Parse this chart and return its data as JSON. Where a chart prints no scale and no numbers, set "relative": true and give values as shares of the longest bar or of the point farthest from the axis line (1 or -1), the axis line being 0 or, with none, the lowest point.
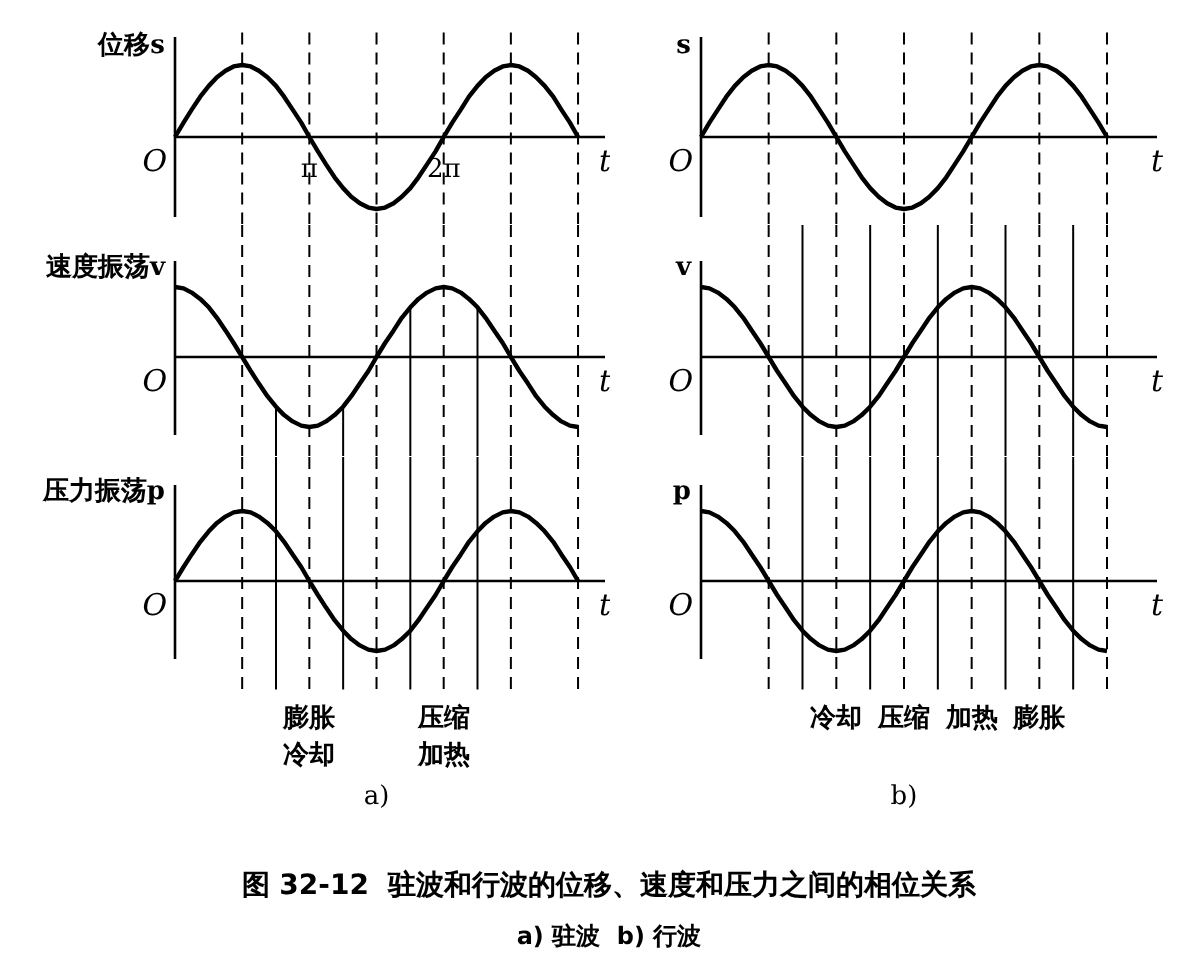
{
  "chart_data": [
    {
      "type": "line",
      "relative": true,
      "ylabel": "位移s",
      "xlabel": "t",
      "xlim": [
        0,
        10.05
      ],
      "xticks": [
        {
          "value": 3.1416,
          "label": "π"
        },
        {
          "value": 6.2832,
          "label": "2π"
        }
      ],
      "tick_labels": "x",
      "x": [
        0,
        0.2,
        0.39,
        0.59,
        0.79,
        0.98,
        1.18,
        1.37,
        1.57,
        1.77,
        1.96,
        2.16,
        2.36,
        2.55,
        2.75,
        2.95,
        3.14,
        3.34,
        3.53,
        3.73,
        3.93,
        4.12,
        4.32,
        4.52,
        4.71,
        4.91,
        5.11,
        5.3,
        5.5,
        5.69,
        5.89,
        6.09,
        6.28,
        6.48,
        6.68,
        6.87,
        7.07,
        7.26,
        7.46,
        7.66,
        7.85,
        8.05,
        8.25,
        8.44,
        8.64,
        8.84,
        9.03,
        9.23,
        9.42
      ],
      "series": [
        {
          "color": "#000000",
          "values": [
            0,
            0.2,
            0.38,
            0.56,
            0.71,
            0.83,
            0.92,
            0.98,
            1,
            0.98,
            0.92,
            0.83,
            0.71,
            0.56,
            0.38,
            0.2,
            0,
            -0.2,
            -0.38,
            -0.56,
            -0.71,
            -0.83,
            -0.92,
            -0.98,
            -1,
            -0.98,
            -0.92,
            -0.83,
            -0.71,
            -0.56,
            -0.38,
            -0.2,
            0,
            0.2,
            0.38,
            0.56,
            0.71,
            0.83,
            0.92,
            0.98,
            1,
            0.98,
            0.92,
            0.83,
            0.71,
            0.56,
            0.38,
            0.2,
            0
          ]
        }
      ],
      "ref_lines": [
        {
          "axis": "x",
          "value": 1.57,
          "line_style": "dashed"
        },
        {
          "axis": "x",
          "value": 3.14,
          "line_style": "dashed"
        },
        {
          "axis": "x",
          "value": 4.71,
          "line_style": "dashed"
        },
        {
          "axis": "x",
          "value": 6.28,
          "line_style": "dashed"
        },
        {
          "axis": "x",
          "value": 7.85,
          "line_style": "dashed"
        },
        {
          "axis": "x",
          "value": 9.42,
          "line_style": "dashed"
        }
      ],
      "annotations": [
        "O"
      ]
    },
    {
      "type": "line",
      "relative": true,
      "ylabel": "速度振荡v",
      "xlabel": "t",
      "xlim": [
        0,
        10.05
      ],
      "tick_labels": false,
      "x": [
        0,
        0.2,
        0.39,
        0.59,
        0.79,
        0.98,
        1.18,
        1.37,
        1.57,
        1.77,
        1.96,
        2.16,
        2.36,
        2.55,
        2.75,
        2.95,
        3.14,
        3.34,
        3.53,
        3.73,
        3.93,
        4.12,
        4.32,
        4.52,
        4.71,
        4.91,
        5.11,
        5.3,
        5.5,
        5.69,
        5.89,
        6.09,
        6.28,
        6.48,
        6.68,
        6.87,
        7.07,
        7.26,
        7.46,
        7.66,
        7.85,
        8.05,
        8.25,
        8.44,
        8.64,
        8.84,
        9.03,
        9.23,
        9.42
      ],
      "series": [
        {
          "color": "#000000",
          "values": [
            1,
            0.98,
            0.92,
            0.83,
            0.71,
            0.56,
            0.38,
            0.2,
            0,
            -0.2,
            -0.38,
            -0.56,
            -0.71,
            -0.83,
            -0.92,
            -0.98,
            -1,
            -0.98,
            -0.92,
            -0.83,
            -0.71,
            -0.56,
            -0.38,
            -0.2,
            0,
            0.2,
            0.38,
            0.56,
            0.71,
            0.83,
            0.92,
            0.98,
            1,
            0.98,
            0.92,
            0.83,
            0.71,
            0.56,
            0.38,
            0.2,
            0,
            -0.2,
            -0.38,
            -0.56,
            -0.71,
            -0.83,
            -0.92,
            -0.98,
            -1
          ]
        }
      ],
      "ref_lines": [
        {
          "axis": "x",
          "value": 1.57,
          "line_style": "dashed"
        },
        {
          "axis": "x",
          "value": 3.14,
          "line_style": "dashed"
        },
        {
          "axis": "x",
          "value": 4.71,
          "line_style": "dashed"
        },
        {
          "axis": "x",
          "value": 6.28,
          "line_style": "dashed"
        },
        {
          "axis": "x",
          "value": 7.85,
          "line_style": "dashed"
        },
        {
          "axis": "x",
          "value": 9.42,
          "line_style": "dashed"
        },
        {
          "axis": "x",
          "value": 2.36,
          "line_style": "solid"
        },
        {
          "axis": "x",
          "value": 3.93,
          "line_style": "solid"
        },
        {
          "axis": "x",
          "value": 5.5,
          "line_style": "solid"
        },
        {
          "axis": "x",
          "value": 7.07,
          "line_style": "solid"
        }
      ],
      "annotations": [
        "O"
      ]
    },
    {
      "type": "line",
      "relative": true,
      "ylabel": "压力振荡p",
      "xlabel": "t",
      "xlim": [
        0,
        10.05
      ],
      "tick_labels": false,
      "x": [
        0,
        0.2,
        0.39,
        0.59,
        0.79,
        0.98,
        1.18,
        1.37,
        1.57,
        1.77,
        1.96,
        2.16,
        2.36,
        2.55,
        2.75,
        2.95,
        3.14,
        3.34,
        3.53,
        3.73,
        3.93,
        4.12,
        4.32,
        4.52,
        4.71,
        4.91,
        5.11,
        5.3,
        5.5,
        5.69,
        5.89,
        6.09,
        6.28,
        6.48,
        6.68,
        6.87,
        7.07,
        7.26,
        7.46,
        7.66,
        7.85,
        8.05,
        8.25,
        8.44,
        8.64,
        8.84,
        9.03,
        9.23,
        9.42
      ],
      "series": [
        {
          "color": "#000000",
          "values": [
            0,
            0.2,
            0.38,
            0.56,
            0.71,
            0.83,
            0.92,
            0.98,
            1,
            0.98,
            0.92,
            0.83,
            0.71,
            0.56,
            0.38,
            0.2,
            0,
            -0.2,
            -0.38,
            -0.56,
            -0.71,
            -0.83,
            -0.92,
            -0.98,
            -1,
            -0.98,
            -0.92,
            -0.83,
            -0.71,
            -0.56,
            -0.38,
            -0.2,
            0,
            0.2,
            0.38,
            0.56,
            0.71,
            0.83,
            0.92,
            0.98,
            1,
            0.98,
            0.92,
            0.83,
            0.71,
            0.56,
            0.38,
            0.2,
            0
          ]
        }
      ],
      "ref_lines": [
        {
          "axis": "x",
          "value": 1.57,
          "line_style": "dashed"
        },
        {
          "axis": "x",
          "value": 3.14,
          "line_style": "dashed",
          "label": "膨胀冷却"
        },
        {
          "axis": "x",
          "value": 4.71,
          "line_style": "dashed"
        },
        {
          "axis": "x",
          "value": 6.28,
          "line_style": "dashed",
          "label": "压缩加热"
        },
        {
          "axis": "x",
          "value": 7.85,
          "line_style": "dashed"
        },
        {
          "axis": "x",
          "value": 9.42,
          "line_style": "dashed"
        },
        {
          "axis": "x",
          "value": 2.36,
          "line_style": "solid"
        },
        {
          "axis": "x",
          "value": 3.93,
          "line_style": "solid"
        },
        {
          "axis": "x",
          "value": 5.5,
          "line_style": "solid"
        },
        {
          "axis": "x",
          "value": 7.07,
          "line_style": "solid"
        }
      ],
      "annotations": [
        "O",
        "a)"
      ]
    },
    {
      "type": "line",
      "relative": true,
      "ylabel": "s",
      "xlabel": "t",
      "grid": "x",
      "tick_labels": false,
      "categories": [
        null,
        null,
        null,
        null,
        null,
        null,
        null,
        null,
        null,
        null,
        null,
        null,
        null,
        null,
        null,
        null,
        null,
        null,
        null,
        null,
        null,
        null,
        null,
        null,
        null,
        null,
        null,
        null,
        null,
        null,
        null,
        null,
        null,
        null,
        null,
        null,
        null,
        null,
        null,
        null,
        null,
        null,
        null,
        null,
        null,
        null,
        null,
        null,
        null
      ],
      "series": [
        {
          "color": "#000000",
          "values": [
            0,
            0.2,
            0.38,
            0.56,
            0.71,
            0.83,
            0.92,
            0.98,
            1,
            0.98,
            0.92,
            0.83,
            0.71,
            0.56,
            0.38,
            0.2,
            0,
            -0.2,
            -0.38,
            -0.56,
            -0.71,
            -0.83,
            -0.92,
            -0.98,
            -1,
            -0.98,
            -0.92,
            -0.83,
            -0.71,
            -0.56,
            -0.38,
            -0.2,
            0,
            0.2,
            0.38,
            0.56,
            0.71,
            0.83,
            0.92,
            0.98,
            1,
            0.98,
            0.92,
            0.83,
            0.71,
            0.56,
            0.38,
            0.2,
            0
          ]
        }
      ],
      "annotations": [
        "O"
      ]
    },
    {
      "type": "line",
      "relative": true,
      "ylabel": "v",
      "xlabel": "t",
      "grid": "x",
      "tick_labels": false,
      "categories": [
        null,
        null,
        null,
        null,
        null,
        null,
        null,
        null,
        null,
        null,
        null,
        null,
        null,
        null,
        null,
        null,
        null,
        null,
        null,
        null,
        null,
        null,
        null,
        null,
        null,
        null,
        null,
        null,
        null,
        null,
        null,
        null,
        null,
        null,
        null,
        null,
        null,
        null,
        null,
        null,
        null,
        null,
        null,
        null,
        null,
        null,
        null,
        null,
        null
      ],
      "series": [
        {
          "color": "#000000",
          "values": [
            1,
            0.98,
            0.92,
            0.83,
            0.71,
            0.56,
            0.38,
            0.2,
            0,
            -0.2,
            -0.38,
            -0.56,
            -0.71,
            -0.83,
            -0.92,
            -0.98,
            -1,
            -0.98,
            -0.92,
            -0.83,
            -0.71,
            -0.56,
            -0.38,
            -0.2,
            0,
            0.2,
            0.38,
            0.56,
            0.71,
            0.83,
            0.92,
            0.98,
            1,
            0.98,
            0.92,
            0.83,
            0.71,
            0.56,
            0.38,
            0.2,
            0,
            -0.2,
            -0.38,
            -0.56,
            -0.71,
            -0.83,
            -0.92,
            -0.98,
            -1
          ]
        }
      ],
      "annotations": [
        "O"
      ]
    },
    {
      "type": "line",
      "relative": true,
      "ylabel": "p",
      "xlabel": "t",
      "grid": "x",
      "categories": [
        null,
        null,
        null,
        null,
        null,
        null,
        null,
        null,
        null,
        null,
        null,
        null,
        null,
        null,
        null,
        null,
        "冷却",
        null,
        null,
        null,
        null,
        null,
        null,
        null,
        "压缩",
        null,
        null,
        null,
        null,
        null,
        null,
        null,
        "加热",
        null,
        null,
        null,
        null,
        null,
        null,
        null,
        "膨胀",
        null,
        null,
        null,
        null,
        null,
        null,
        null,
        null
      ],
      "series": [
        {
          "color": "#000000",
          "values": [
            1,
            0.98,
            0.92,
            0.83,
            0.71,
            0.56,
            0.38,
            0.2,
            0,
            -0.2,
            -0.38,
            -0.56,
            -0.71,
            -0.83,
            -0.92,
            -0.98,
            -1,
            -0.98,
            -0.92,
            -0.83,
            -0.71,
            -0.56,
            -0.38,
            -0.2,
            0,
            0.2,
            0.38,
            0.56,
            0.71,
            0.83,
            0.92,
            0.98,
            1,
            0.98,
            0.92,
            0.83,
            0.71,
            0.56,
            0.38,
            0.2,
            0,
            -0.2,
            -0.38,
            -0.56,
            -0.71,
            -0.83,
            -0.92,
            -0.98,
            -1
          ]
        }
      ],
      "annotations": [
        "O",
        "b)",
        "图 32-12  驻波和行波的位移、速度和压力之间的相位关系",
        "a) 驻波  b) 行波"
      ]
    }
  ]
}
